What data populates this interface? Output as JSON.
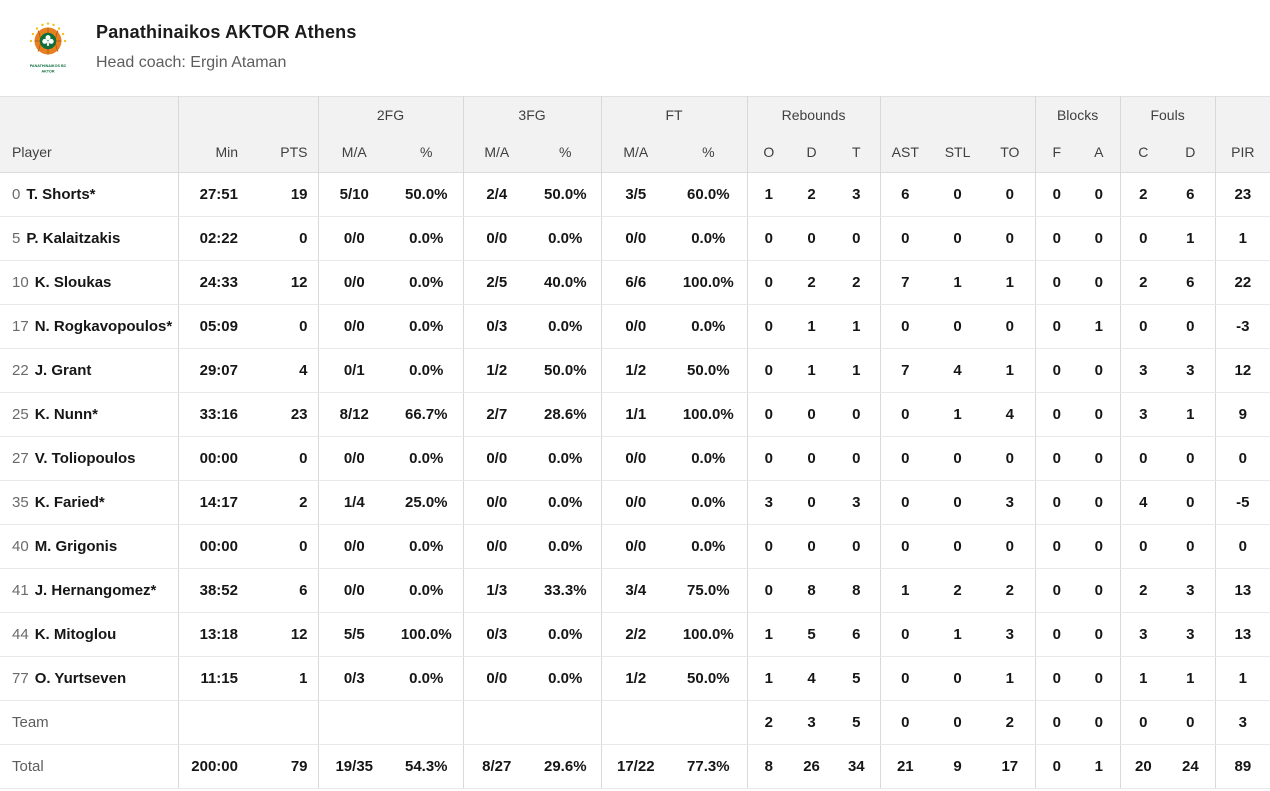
{
  "header": {
    "team_name": "Panathinaikos AKTOR Athens",
    "coach_line": "Head coach: Ergin Ataman",
    "logo": {
      "line1": "PANATHINAIKOS BC",
      "line2": "AKTOR",
      "ball_color": "#e8801f",
      "seam_color": "#b05f14",
      "clover_bg": "#0e6e3c",
      "clover_color": "#ffffff",
      "ray_color": "#f2c11e",
      "text_color": "#0e6e3c"
    }
  },
  "table": {
    "groups": [
      {
        "label": "",
        "span": 1
      },
      {
        "label": "",
        "span": 2
      },
      {
        "label": "2FG",
        "span": 2
      },
      {
        "label": "3FG",
        "span": 2
      },
      {
        "label": "FT",
        "span": 2
      },
      {
        "label": "Rebounds",
        "span": 3
      },
      {
        "label": "",
        "span": 3
      },
      {
        "label": "Blocks",
        "span": 2
      },
      {
        "label": "Fouls",
        "span": 2
      },
      {
        "label": "",
        "span": 1
      }
    ],
    "columns": [
      "Player",
      "Min",
      "PTS",
      "M/A",
      "%",
      "M/A",
      "%",
      "M/A",
      "%",
      "O",
      "D",
      "T",
      "AST",
      "STL",
      "TO",
      "F",
      "A",
      "C",
      "D",
      "PIR"
    ],
    "rows": [
      {
        "type": "player",
        "number": "0",
        "name": "T. Shorts*",
        "stats": [
          "27:51",
          "19",
          "5/10",
          "50.0%",
          "2/4",
          "50.0%",
          "3/5",
          "60.0%",
          "1",
          "2",
          "3",
          "6",
          "0",
          "0",
          "0",
          "0",
          "2",
          "6",
          "23"
        ]
      },
      {
        "type": "player",
        "number": "5",
        "name": "P. Kalaitzakis",
        "stats": [
          "02:22",
          "0",
          "0/0",
          "0.0%",
          "0/0",
          "0.0%",
          "0/0",
          "0.0%",
          "0",
          "0",
          "0",
          "0",
          "0",
          "0",
          "0",
          "0",
          "0",
          "1",
          "1"
        ]
      },
      {
        "type": "player",
        "number": "10",
        "name": "K. Sloukas",
        "stats": [
          "24:33",
          "12",
          "0/0",
          "0.0%",
          "2/5",
          "40.0%",
          "6/6",
          "100.0%",
          "0",
          "2",
          "2",
          "7",
          "1",
          "1",
          "0",
          "0",
          "2",
          "6",
          "22"
        ]
      },
      {
        "type": "player",
        "number": "17",
        "name": "N. Rogkavopoulos*",
        "stats": [
          "05:09",
          "0",
          "0/0",
          "0.0%",
          "0/3",
          "0.0%",
          "0/0",
          "0.0%",
          "0",
          "1",
          "1",
          "0",
          "0",
          "0",
          "0",
          "1",
          "0",
          "0",
          "-3"
        ]
      },
      {
        "type": "player",
        "number": "22",
        "name": "J. Grant",
        "stats": [
          "29:07",
          "4",
          "0/1",
          "0.0%",
          "1/2",
          "50.0%",
          "1/2",
          "50.0%",
          "0",
          "1",
          "1",
          "7",
          "4",
          "1",
          "0",
          "0",
          "3",
          "3",
          "12"
        ]
      },
      {
        "type": "player",
        "number": "25",
        "name": "K. Nunn*",
        "stats": [
          "33:16",
          "23",
          "8/12",
          "66.7%",
          "2/7",
          "28.6%",
          "1/1",
          "100.0%",
          "0",
          "0",
          "0",
          "0",
          "1",
          "4",
          "0",
          "0",
          "3",
          "1",
          "9"
        ]
      },
      {
        "type": "player",
        "number": "27",
        "name": "V. Toliopoulos",
        "stats": [
          "00:00",
          "0",
          "0/0",
          "0.0%",
          "0/0",
          "0.0%",
          "0/0",
          "0.0%",
          "0",
          "0",
          "0",
          "0",
          "0",
          "0",
          "0",
          "0",
          "0",
          "0",
          "0"
        ]
      },
      {
        "type": "player",
        "number": "35",
        "name": "K. Faried*",
        "stats": [
          "14:17",
          "2",
          "1/4",
          "25.0%",
          "0/0",
          "0.0%",
          "0/0",
          "0.0%",
          "3",
          "0",
          "3",
          "0",
          "0",
          "3",
          "0",
          "0",
          "4",
          "0",
          "-5"
        ]
      },
      {
        "type": "player",
        "number": "40",
        "name": "M. Grigonis",
        "stats": [
          "00:00",
          "0",
          "0/0",
          "0.0%",
          "0/0",
          "0.0%",
          "0/0",
          "0.0%",
          "0",
          "0",
          "0",
          "0",
          "0",
          "0",
          "0",
          "0",
          "0",
          "0",
          "0"
        ]
      },
      {
        "type": "player",
        "number": "41",
        "name": "J. Hernangomez*",
        "stats": [
          "38:52",
          "6",
          "0/0",
          "0.0%",
          "1/3",
          "33.3%",
          "3/4",
          "75.0%",
          "0",
          "8",
          "8",
          "1",
          "2",
          "2",
          "0",
          "0",
          "2",
          "3",
          "13"
        ]
      },
      {
        "type": "player",
        "number": "44",
        "name": "K. Mitoglou",
        "stats": [
          "13:18",
          "12",
          "5/5",
          "100.0%",
          "0/3",
          "0.0%",
          "2/2",
          "100.0%",
          "1",
          "5",
          "6",
          "0",
          "1",
          "3",
          "0",
          "0",
          "3",
          "3",
          "13"
        ]
      },
      {
        "type": "player",
        "number": "77",
        "name": "O. Yurtseven",
        "stats": [
          "11:15",
          "1",
          "0/3",
          "0.0%",
          "0/0",
          "0.0%",
          "1/2",
          "50.0%",
          "1",
          "4",
          "5",
          "0",
          "0",
          "1",
          "0",
          "0",
          "1",
          "1",
          "1"
        ]
      },
      {
        "type": "team",
        "label": "Team",
        "stats": [
          "",
          "",
          "",
          "",
          "",
          "",
          "",
          "",
          "2",
          "3",
          "5",
          "0",
          "0",
          "2",
          "0",
          "0",
          "0",
          "0",
          "3"
        ]
      },
      {
        "type": "total",
        "label": "Total",
        "stats": [
          "200:00",
          "79",
          "19/35",
          "54.3%",
          "8/27",
          "29.6%",
          "17/22",
          "77.3%",
          "8",
          "26",
          "34",
          "21",
          "9",
          "17",
          "0",
          "1",
          "20",
          "24",
          "89"
        ]
      }
    ]
  }
}
